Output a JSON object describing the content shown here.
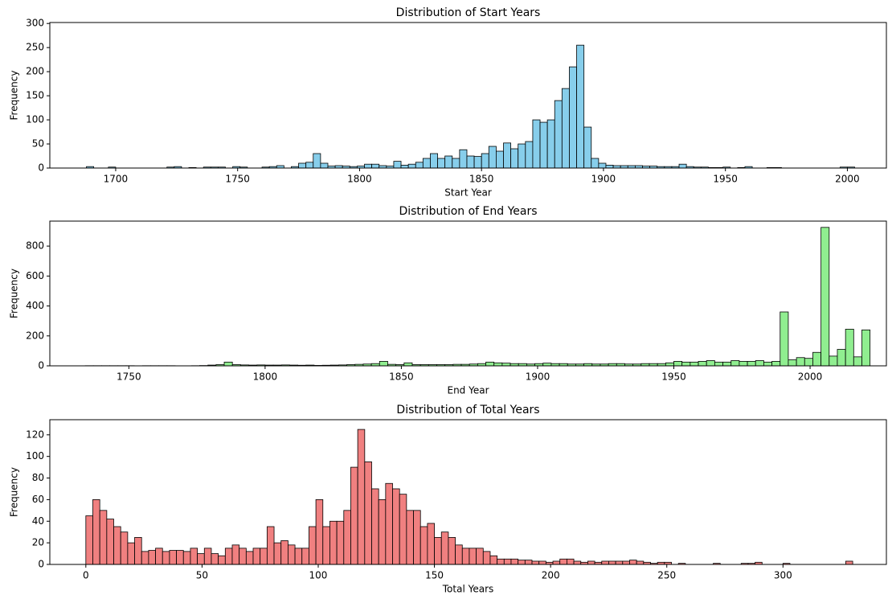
{
  "chart_data": [
    {
      "type": "histogram",
      "title": "Distribution of Start Years",
      "x_label": "Start Year",
      "y_label": "Frequency",
      "bins": [
        1688,
        1691,
        1694,
        1697,
        1700,
        1703,
        1706,
        1709,
        1712,
        1715,
        1718,
        1721,
        1724,
        1727,
        1730,
        1733,
        1736,
        1739,
        1742,
        1745,
        1748,
        1751,
        1754,
        1757,
        1760,
        1763,
        1766,
        1769,
        1772,
        1775,
        1778,
        1781,
        1784,
        1787,
        1790,
        1793,
        1796,
        1799,
        1802,
        1805,
        1808,
        1811,
        1814,
        1817,
        1820,
        1823,
        1826,
        1829,
        1832,
        1835,
        1838,
        1841,
        1844,
        1847,
        1850,
        1853,
        1856,
        1859,
        1862,
        1865,
        1868,
        1871,
        1874,
        1877,
        1880,
        1883,
        1886,
        1889,
        1892,
        1895,
        1898,
        1901,
        1904,
        1907,
        1910,
        1913,
        1916,
        1919,
        1922,
        1925,
        1928,
        1931,
        1934,
        1937,
        1940,
        1943,
        1946,
        1949,
        1952,
        1955,
        1958,
        1961,
        1964,
        1967,
        1970,
        1973,
        1976,
        1979,
        1982,
        1985,
        1988,
        1991,
        1994,
        1997,
        2000,
        2003
      ],
      "values": [
        3,
        0,
        0,
        2,
        0,
        0,
        0,
        0,
        0,
        0,
        0,
        2,
        3,
        0,
        1,
        0,
        2,
        2,
        2,
        0,
        3,
        2,
        0,
        0,
        2,
        3,
        5,
        0,
        3,
        10,
        12,
        30,
        10,
        4,
        5,
        4,
        3,
        4,
        8,
        8,
        5,
        4,
        14,
        6,
        8,
        12,
        20,
        30,
        20,
        25,
        20,
        38,
        25,
        24,
        30,
        45,
        35,
        52,
        40,
        50,
        55,
        100,
        95,
        100,
        140,
        165,
        210,
        255,
        85,
        20,
        10,
        6,
        5,
        5,
        5,
        5,
        4,
        4,
        3,
        3,
        3,
        8,
        3,
        2,
        2,
        1,
        1,
        2,
        0,
        1,
        3,
        0,
        0,
        1,
        1,
        0,
        0,
        0,
        0,
        0,
        0,
        0,
        0,
        2,
        2
      ],
      "color": "#87ceeb",
      "edgecolor": "#000000",
      "xlim": [
        1673,
        2016
      ],
      "xticks": [
        1700,
        1750,
        1800,
        1850,
        1900,
        1950,
        2000
      ],
      "ylim": [
        0,
        302
      ],
      "yticks": [
        0,
        50,
        100,
        150,
        200,
        250,
        300
      ]
    },
    {
      "type": "histogram",
      "title": "Distribution of End Years",
      "x_label": "End Year",
      "y_label": "Frequency",
      "bins": [
        1734,
        1737,
        1740,
        1743,
        1746,
        1749,
        1752,
        1755,
        1758,
        1761,
        1764,
        1767,
        1770,
        1773,
        1776,
        1779,
        1782,
        1785,
        1788,
        1791,
        1794,
        1797,
        1800,
        1803,
        1806,
        1809,
        1812,
        1815,
        1818,
        1821,
        1824,
        1827,
        1830,
        1833,
        1836,
        1839,
        1842,
        1845,
        1848,
        1851,
        1854,
        1857,
        1860,
        1863,
        1866,
        1869,
        1872,
        1875,
        1878,
        1881,
        1884,
        1887,
        1890,
        1893,
        1896,
        1899,
        1902,
        1905,
        1908,
        1911,
        1914,
        1917,
        1920,
        1923,
        1926,
        1929,
        1932,
        1935,
        1938,
        1941,
        1944,
        1947,
        1950,
        1953,
        1956,
        1959,
        1962,
        1965,
        1968,
        1971,
        1974,
        1977,
        1980,
        1983,
        1986,
        1989,
        1992,
        1995,
        1998,
        2001,
        2004,
        2007,
        2010,
        2013,
        2016,
        2019,
        2022
      ],
      "values": [
        1,
        1,
        1,
        1,
        1,
        1,
        0,
        1,
        1,
        1,
        1,
        0,
        0,
        1,
        2,
        5,
        8,
        25,
        8,
        6,
        5,
        6,
        5,
        5,
        6,
        5,
        4,
        5,
        3,
        4,
        5,
        6,
        8,
        10,
        12,
        15,
        30,
        10,
        8,
        20,
        8,
        8,
        8,
        8,
        8,
        10,
        10,
        12,
        15,
        25,
        20,
        18,
        15,
        15,
        12,
        15,
        18,
        15,
        15,
        12,
        12,
        15,
        12,
        12,
        15,
        15,
        12,
        12,
        15,
        15,
        15,
        20,
        30,
        25,
        25,
        30,
        35,
        25,
        25,
        35,
        30,
        30,
        35,
        25,
        30,
        360,
        40,
        55,
        50,
        90,
        925,
        65,
        110,
        245,
        60,
        240
      ],
      "color": "#90ee90",
      "edgecolor": "#000000",
      "xlim": [
        1721,
        2028
      ],
      "xticks": [
        1750,
        1800,
        1850,
        1900,
        1950,
        2000
      ],
      "ylim": [
        0,
        967
      ],
      "yticks": [
        0,
        200,
        400,
        600,
        800
      ]
    },
    {
      "type": "histogram",
      "title": "Distribution of Total Years",
      "x_label": "Total Years",
      "y_label": "Frequency",
      "bins": [
        0,
        3,
        6,
        9,
        12,
        15,
        18,
        21,
        24,
        27,
        30,
        33,
        36,
        39,
        42,
        45,
        48,
        51,
        54,
        57,
        60,
        63,
        66,
        69,
        72,
        75,
        78,
        81,
        84,
        87,
        90,
        93,
        96,
        99,
        102,
        105,
        108,
        111,
        114,
        117,
        120,
        123,
        126,
        129,
        132,
        135,
        138,
        141,
        144,
        147,
        150,
        153,
        156,
        159,
        162,
        165,
        168,
        171,
        174,
        177,
        180,
        183,
        186,
        189,
        192,
        195,
        198,
        201,
        204,
        207,
        210,
        213,
        216,
        219,
        222,
        225,
        228,
        231,
        234,
        237,
        240,
        243,
        246,
        249,
        252,
        255,
        258,
        261,
        264,
        267,
        270,
        273,
        276,
        279,
        282,
        285,
        288,
        291,
        294,
        297,
        300,
        303,
        306,
        309,
        312,
        315,
        318,
        321,
        324,
        327,
        330
      ],
      "values": [
        45,
        60,
        50,
        42,
        35,
        30,
        20,
        25,
        12,
        13,
        15,
        12,
        13,
        13,
        12,
        15,
        10,
        15,
        10,
        8,
        15,
        18,
        15,
        12,
        15,
        15,
        35,
        20,
        22,
        18,
        15,
        15,
        35,
        60,
        35,
        40,
        40,
        50,
        90,
        125,
        95,
        70,
        60,
        75,
        70,
        65,
        50,
        50,
        35,
        38,
        25,
        30,
        25,
        18,
        15,
        15,
        15,
        12,
        8,
        5,
        5,
        5,
        4,
        4,
        3,
        3,
        2,
        3,
        5,
        5,
        3,
        2,
        3,
        2,
        3,
        3,
        3,
        3,
        4,
        3,
        2,
        1,
        2,
        2,
        0,
        1,
        0,
        0,
        0,
        0,
        1,
        0,
        0,
        0,
        1,
        1,
        2,
        0,
        0,
        0,
        1,
        0,
        0,
        0,
        0,
        0,
        0,
        0,
        0,
        3
      ],
      "color": "#f08080",
      "edgecolor": "#000000",
      "xlim": [
        -15.5,
        344.5
      ],
      "xticks": [
        0,
        50,
        100,
        150,
        200,
        250,
        300
      ],
      "ylim": [
        0,
        134
      ],
      "yticks": [
        0,
        20,
        40,
        60,
        80,
        100,
        120
      ]
    }
  ]
}
